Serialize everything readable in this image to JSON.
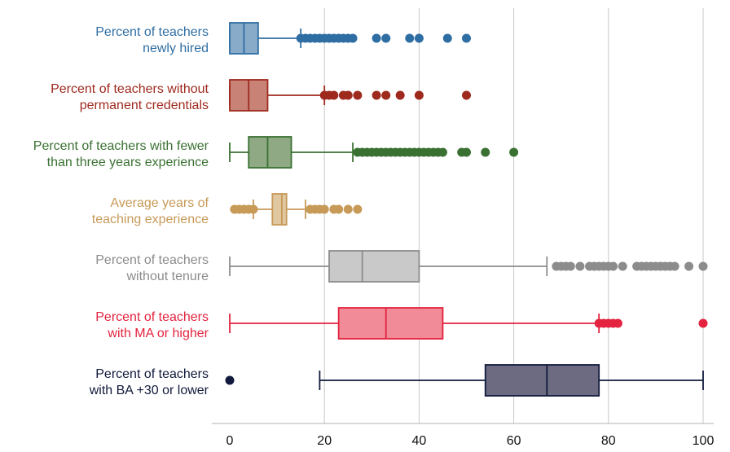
{
  "chart_data": {
    "type": "boxplot",
    "orientation": "horizontal",
    "title": "",
    "xlabel": "",
    "ylabel": "",
    "xlim": [
      0,
      100
    ],
    "x_ticks": [
      0,
      20,
      40,
      60,
      80,
      100
    ],
    "grid": "vertical",
    "legend": "none",
    "series": [
      {
        "name": "Percent of teachers newly hired",
        "label_lines": [
          "Percent of teachers",
          "newly hired"
        ],
        "color": "#2f6ea3",
        "box_fill": "#88abc9",
        "min": 0,
        "q1": 0,
        "median": 3,
        "q3": 6,
        "max": 15,
        "outliers": [
          15,
          16,
          17,
          18,
          19,
          20,
          21,
          22,
          23,
          24,
          25,
          26,
          31,
          33,
          38,
          40,
          46,
          50
        ]
      },
      {
        "name": "Percent of teachers without permanent credentials",
        "label_lines": [
          "Percent of teachers without",
          "permanent credentials"
        ],
        "color": "#9e2a1e",
        "box_fill": "#c98376",
        "min": 0,
        "q1": 0,
        "median": 4,
        "q3": 8,
        "max": 20,
        "outliers": [
          20,
          21,
          22,
          24,
          25,
          27,
          31,
          33,
          36,
          40,
          50
        ]
      },
      {
        "name": "Percent of teachers with fewer than three years experience",
        "label_lines": [
          "Percent of teachers with fewer",
          "than three years experience"
        ],
        "color": "#3a7132",
        "box_fill": "#8fa985",
        "min": 0,
        "q1": 4,
        "median": 8,
        "q3": 13,
        "max": 26,
        "outliers": [
          27,
          28,
          29,
          30,
          31,
          32,
          33,
          34,
          35,
          36,
          37,
          38,
          39,
          40,
          41,
          42,
          43,
          44,
          45,
          49,
          50,
          54,
          60
        ]
      },
      {
        "name": "Average years of teaching experience",
        "label_lines": [
          "Average years of",
          "teaching experience"
        ],
        "color": "#c79a58",
        "box_fill": "#e0c7a0",
        "min": 5,
        "q1": 9,
        "median": 11,
        "q3": 12,
        "max": 16,
        "outliers": [
          1,
          2,
          3,
          4,
          5,
          17,
          18,
          19,
          20,
          22,
          23,
          25,
          27
        ]
      },
      {
        "name": "Percent of teachers without tenure",
        "label_lines": [
          "Percent of teachers",
          "without tenure"
        ],
        "color": "#8c8c8c",
        "box_fill": "#c9c9c9",
        "min": 0,
        "q1": 21,
        "median": 28,
        "q3": 40,
        "max": 67,
        "outliers": [
          69,
          70,
          71,
          72,
          74,
          76,
          77,
          78,
          79,
          80,
          81,
          83,
          86,
          87,
          88,
          89,
          90,
          91,
          92,
          93,
          94,
          97,
          100
        ]
      },
      {
        "name": "Percent of teachers with MA or higher",
        "label_lines": [
          "Percent of teachers",
          "with MA or higher"
        ],
        "color": "#e3233f",
        "box_fill": "#f08b97",
        "min": 0,
        "q1": 23,
        "median": 33,
        "q3": 45,
        "max": 78,
        "outliers": [
          78,
          79,
          80,
          81,
          82,
          100
        ]
      },
      {
        "name": "Percent of teachers with BA +30 or lower",
        "label_lines": [
          "Percent of teachers",
          "with BA +30 or lower"
        ],
        "color": "#111a3c",
        "box_fill": "#6c6b82",
        "min": 19,
        "q1": 54,
        "median": 67,
        "q3": 78,
        "max": 100,
        "outliers": [
          0
        ]
      }
    ]
  }
}
